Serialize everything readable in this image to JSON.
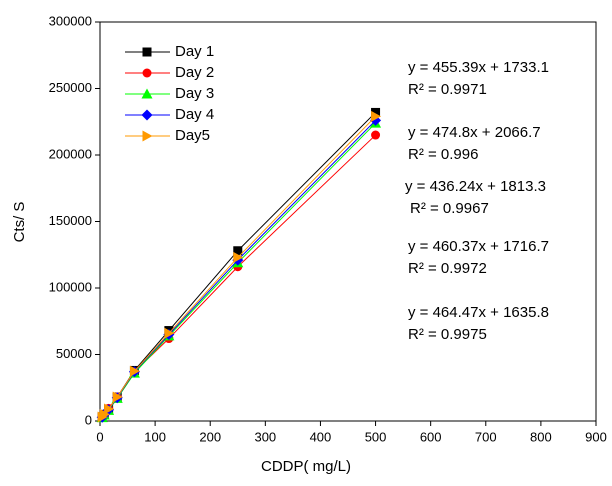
{
  "chart_data": {
    "type": "line",
    "x_label": "CDDP( mg/L)",
    "y_label": "Cts/ S",
    "x": [
      3.9,
      7.8,
      15.6,
      31.25,
      62.5,
      125,
      250,
      500
    ],
    "series": [
      {
        "name": "Day 1",
        "color": "#000000",
        "marker": "square",
        "values": [
          3000,
          5000,
          9000,
          18000,
          38000,
          68000,
          128000,
          232000
        ]
      },
      {
        "name": "Day 2",
        "color": "#ff0000",
        "marker": "circle",
        "values": [
          3000,
          5000,
          9500,
          18000,
          37000,
          62000,
          116000,
          215000
        ]
      },
      {
        "name": "Day 3",
        "color": "#00ff00",
        "marker": "triangle-up",
        "values": [
          2500,
          4500,
          8000,
          17000,
          36000,
          64000,
          119000,
          224000
        ]
      },
      {
        "name": "Day 4",
        "color": "#0000ff",
        "marker": "diamond",
        "values": [
          2800,
          4800,
          8500,
          17500,
          37000,
          65000,
          121000,
          226000
        ]
      },
      {
        "name": "Day5",
        "color": "#ff9900",
        "marker": "triangle-right",
        "values": [
          3000,
          5000,
          9000,
          18000,
          37500,
          66000,
          123000,
          229000
        ]
      }
    ],
    "annotations": [
      "y = 455.39x + 1733.1",
      "R² = 0.9971",
      "y = 474.8x + 2066.7",
      "R² = 0.996",
      "y = 436.24x + 1813.3",
      "R² = 0.9967",
      "y = 460.37x + 1716.7",
      "R² = 0.9972",
      "y = 464.47x + 1635.8",
      "R² = 0.9975"
    ],
    "xlim": [
      0,
      900
    ],
    "xticks": [
      0,
      100,
      200,
      300,
      400,
      500,
      600,
      700,
      800,
      900
    ],
    "ylim": [
      0,
      300000
    ],
    "yticks": [
      0,
      50000,
      100000,
      150000,
      200000,
      250000,
      300000
    ],
    "legend": "upper left",
    "grid": false
  }
}
